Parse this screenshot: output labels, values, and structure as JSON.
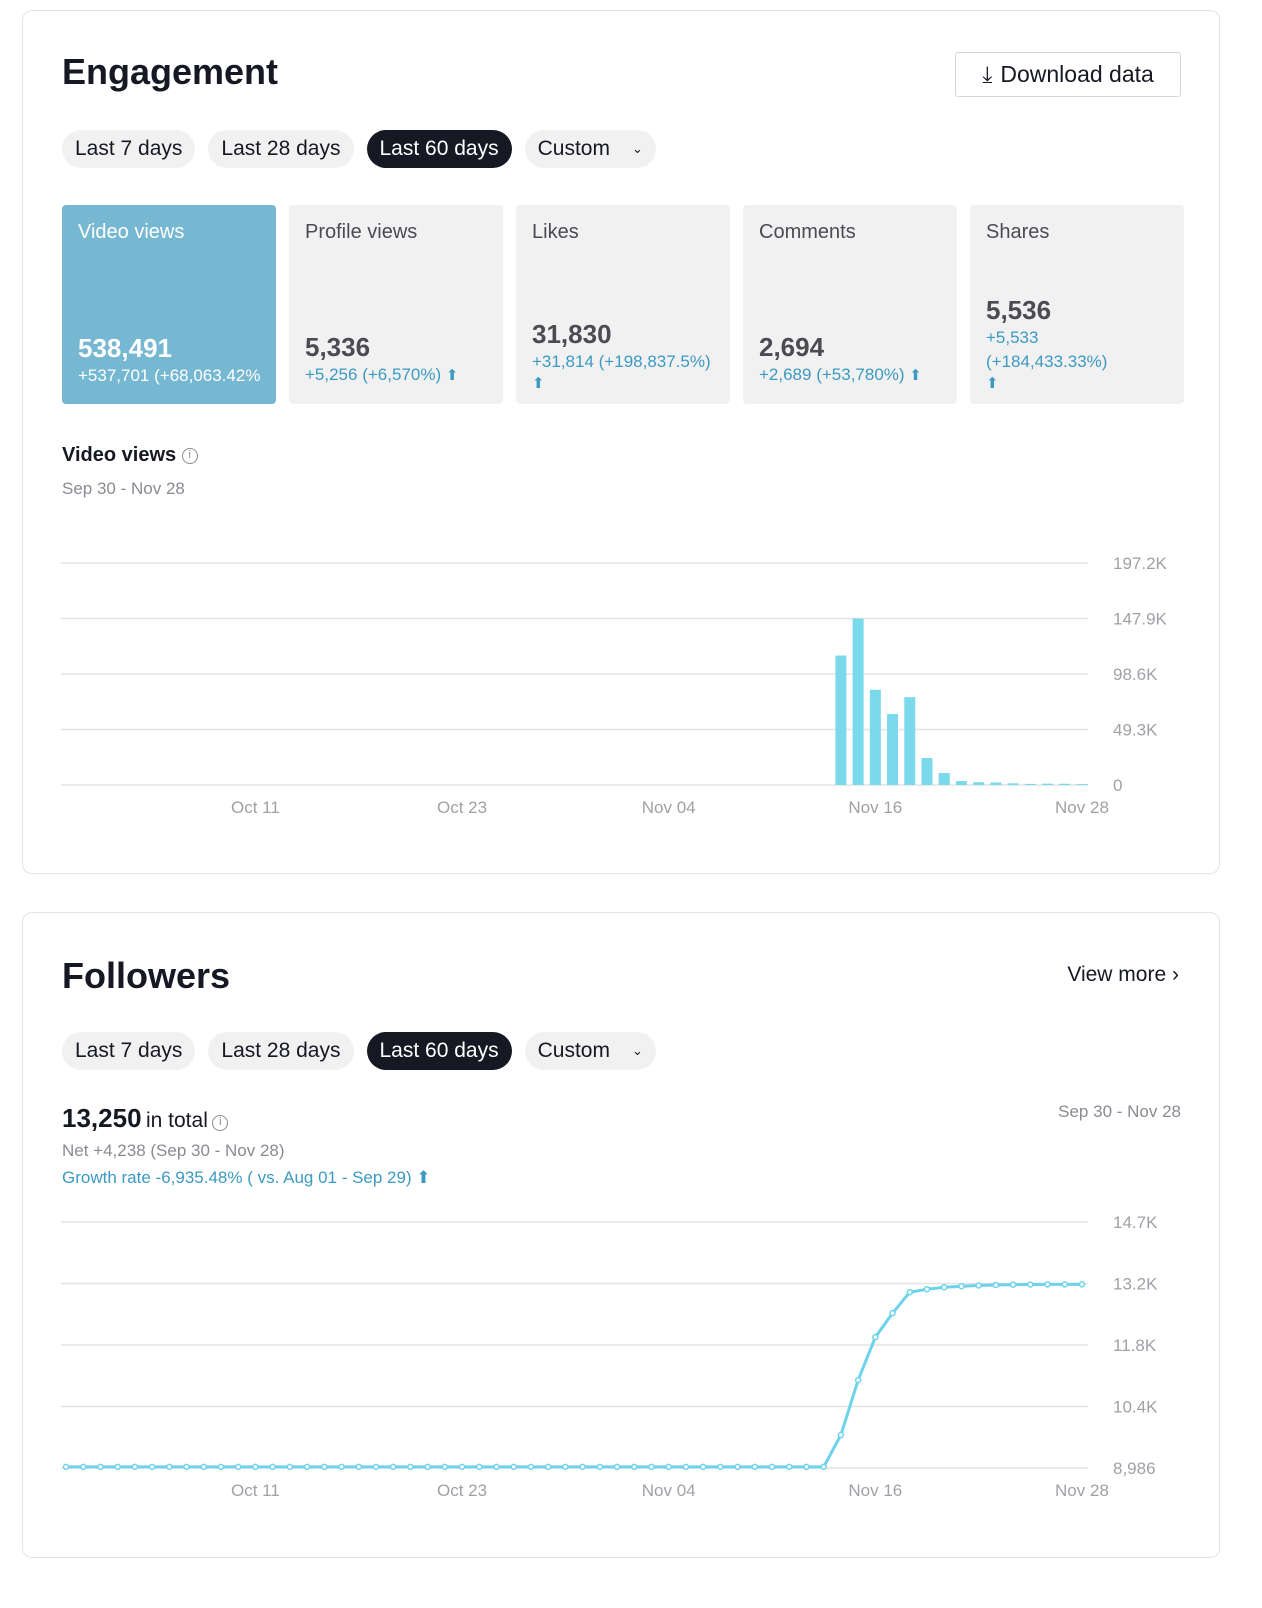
{
  "engagement": {
    "title": "Engagement",
    "download_label": "Download data",
    "ranges": [
      "Last 7 days",
      "Last 28 days",
      "Last 60 days",
      "Custom"
    ],
    "cards": [
      {
        "label": "Video views",
        "value": "538,491",
        "delta": "+537,701 (+68,063.42%",
        "arrow": ""
      },
      {
        "label": "Profile views",
        "value": "5,336",
        "delta": "+5,256 (+6,570%)",
        "arrow": "🠉"
      },
      {
        "label": "Likes",
        "value": "31,830",
        "delta": "+31,814 (+198,837.5%)",
        "arrow": "🠉"
      },
      {
        "label": "Comments",
        "value": "2,694",
        "delta": "+2,689 (+53,780%)",
        "arrow": "🠉"
      },
      {
        "label": "Shares",
        "value": "5,536",
        "delta": "+5,533",
        "delta2": "(+184,433.33%)",
        "arrow": "🠉"
      }
    ],
    "chart_title": "Video views",
    "date_range": "Sep 30 - Nov 28"
  },
  "followers": {
    "title": "Followers",
    "view_more": "View more",
    "ranges": [
      "Last 7 days",
      "Last 28 days",
      "Last 60 days",
      "Custom"
    ],
    "total": "13,250",
    "total_suffix": "in total",
    "net": "Net +4,238 (Sep 30 - Nov 28)",
    "growth": "Growth rate -6,935.48% ( vs. Aug 01 - Sep 29)",
    "date_range": "Sep 30 - Nov 28"
  },
  "colors": {
    "accent": "#76b7d1",
    "bar": "#7bd9ec",
    "line": "#6dd3ea"
  },
  "chart_data": [
    {
      "type": "bar",
      "title": "Video views",
      "x_ticks": [
        "Oct 11",
        "Oct 23",
        "Nov 04",
        "Nov 16",
        "Nov 28"
      ],
      "x_tick_index": [
        11,
        23,
        35,
        47,
        59
      ],
      "y_ticks": [
        "197.2K",
        "147.9K",
        "98.6K",
        "49.3K",
        "0"
      ],
      "ylim": [
        0,
        197200
      ],
      "values": [
        0,
        0,
        0,
        0,
        0,
        0,
        0,
        0,
        0,
        0,
        0,
        0,
        0,
        0,
        0,
        0,
        0,
        0,
        0,
        0,
        0,
        0,
        0,
        0,
        0,
        0,
        0,
        0,
        0,
        0,
        0,
        0,
        0,
        0,
        0,
        0,
        0,
        0,
        0,
        0,
        0,
        0,
        0,
        0,
        0,
        115000,
        147900,
        84600,
        63000,
        78000,
        24000,
        10700,
        3500,
        2500,
        2200,
        1500,
        1000,
        1200,
        1100,
        800
      ]
    },
    {
      "type": "line",
      "title": "Followers",
      "x_ticks": [
        "Oct 11",
        "Oct 23",
        "Nov 04",
        "Nov 16",
        "Nov 28"
      ],
      "x_tick_index": [
        11,
        23,
        35,
        47,
        59
      ],
      "y_ticks": [
        "14.7K",
        "13.2K",
        "11.8K",
        "10.4K",
        "8,986"
      ],
      "ylim": [
        8986,
        14700
      ],
      "values": [
        9012,
        9012,
        9012,
        9012,
        9012,
        9012,
        9012,
        9012,
        9012,
        9012,
        9012,
        9012,
        9012,
        9012,
        9012,
        9012,
        9012,
        9012,
        9012,
        9012,
        9012,
        9012,
        9012,
        9012,
        9012,
        9012,
        9012,
        9012,
        9012,
        9012,
        9012,
        9012,
        9012,
        9012,
        9012,
        9012,
        9012,
        9012,
        9012,
        9012,
        9012,
        9012,
        9012,
        9012,
        9012,
        9752,
        11028,
        12025,
        12582,
        13069,
        13139,
        13185,
        13208,
        13225,
        13238,
        13245,
        13248,
        13250,
        13250,
        13250
      ]
    }
  ]
}
